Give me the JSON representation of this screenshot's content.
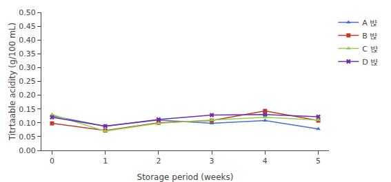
{
  "chart_data": {
    "type": "line",
    "x": [
      0,
      1,
      2,
      3,
      4,
      5
    ],
    "series": [
      {
        "name": "A 뱑",
        "color": "#4472C4",
        "marker": "triangle",
        "values": [
          0.125,
          0.088,
          0.11,
          0.098,
          0.108,
          0.078
        ]
      },
      {
        "name": "B 뱑",
        "color": "#C0392B",
        "marker": "square",
        "values": [
          0.098,
          0.072,
          0.1,
          0.108,
          0.143,
          0.108
        ]
      },
      {
        "name": "C 뱑",
        "color": "#92D050",
        "marker": "triangle",
        "values": [
          0.13,
          0.07,
          0.098,
          0.11,
          0.12,
          0.11
        ]
      },
      {
        "name": "D 뱑",
        "color": "#7030A0",
        "marker": "x",
        "values": [
          0.12,
          0.088,
          0.112,
          0.128,
          0.13,
          0.122
        ]
      }
    ],
    "xlabel": "Storage period (weeks)",
    "ylabel": "Titrtaable acidity (g/100 mL)",
    "xlim": [
      -0.2,
      5.2
    ],
    "xticks": [
      0,
      1,
      2,
      3,
      4,
      5
    ],
    "ylim": [
      0.0,
      0.5
    ],
    "yticks": [
      {
        "value": 0.0,
        "label": "0.00"
      },
      0.05,
      {
        "value": 0.1,
        "label": "0.10"
      },
      0.15,
      {
        "value": 0.2,
        "label": "0.20"
      },
      0.25,
      {
        "value": 0.3,
        "label": "0.30"
      },
      0.35,
      {
        "value": 0.4,
        "label": "0.40"
      },
      0.45,
      {
        "value": 0.5,
        "label": "0.50"
      }
    ],
    "grid": false,
    "legend": "right"
  }
}
